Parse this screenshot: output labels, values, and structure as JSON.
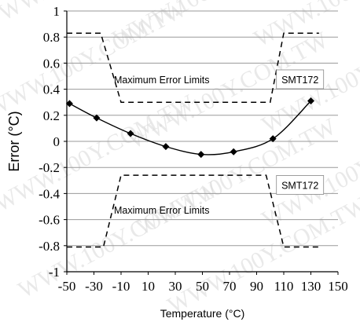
{
  "chart_data": {
    "type": "line",
    "xlabel": "Temperature (°C)",
    "ylabel": "Error (°C)",
    "xlim": [
      -50,
      150
    ],
    "ylim": [
      -1,
      1
    ],
    "x_ticks": [
      "-50",
      "-30",
      "-10",
      "10",
      "30",
      "50",
      "70",
      "90",
      "110",
      "130",
      "150"
    ],
    "y_ticks": [
      "1",
      "0.8",
      "0.6",
      "0.4",
      "0.2",
      "0",
      "-0.2",
      "-0.4",
      "-0.6",
      "-0.8",
      "-1"
    ],
    "grid": "horizontal",
    "series": [
      {
        "style": "solid-with-markers",
        "color": "#000000",
        "points": [
          [
            -48,
            0.29
          ],
          [
            -28,
            0.18
          ],
          [
            -3,
            0.06
          ],
          [
            23,
            -0.04
          ],
          [
            49,
            -0.1
          ],
          [
            73,
            -0.08
          ],
          [
            102,
            0.02
          ],
          [
            130,
            0.31
          ]
        ]
      },
      {
        "style": "dashed",
        "color": "#000000",
        "points": [
          [
            -50,
            0.83
          ],
          [
            -25,
            0.83
          ],
          [
            -10,
            0.3
          ],
          [
            100,
            0.3
          ],
          [
            110,
            0.83
          ],
          [
            136,
            0.83
          ]
        ]
      },
      {
        "style": "dashed",
        "color": "#000000",
        "points": [
          [
            -50,
            -0.81
          ],
          [
            -23,
            -0.81
          ],
          [
            -10,
            -0.26
          ],
          [
            97,
            -0.26
          ],
          [
            110,
            -0.81
          ],
          [
            136,
            -0.81
          ]
        ]
      }
    ],
    "annotations": [
      {
        "text": "Maximum Error Limits",
        "x": 20,
        "y": 0.47,
        "boxed": false
      },
      {
        "text": "SMT172",
        "x": 122,
        "y": 0.47,
        "boxed": true
      },
      {
        "text": "Maximum Error Limits",
        "x": 20,
        "y": -0.53,
        "boxed": false
      },
      {
        "text": "SMT172",
        "x": 122,
        "y": -0.34,
        "boxed": true
      }
    ],
    "watermark": "WWW.100Y.COM.TW"
  }
}
